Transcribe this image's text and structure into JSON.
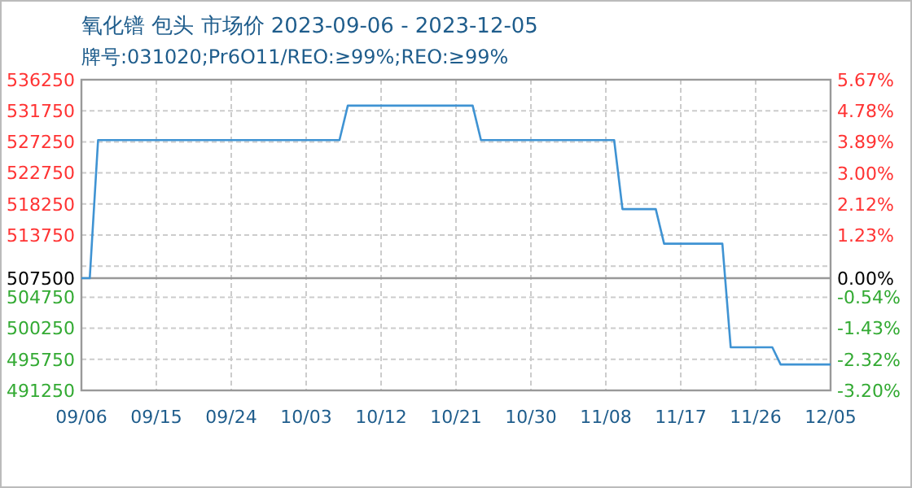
{
  "chart_data": {
    "type": "line",
    "title": "氧化镨 包头 市场价 2023-09-06 - 2023-12-05",
    "subtitle": "牌号:031020;Pr6O11/REO:≥99%;REO:≥99%",
    "x": [
      "2023-09-06",
      "2023-09-07",
      "2023-09-08",
      "2023-10-07",
      "2023-10-08",
      "2023-10-23",
      "2023-10-24",
      "2023-11-09",
      "2023-11-10",
      "2023-11-14",
      "2023-11-15",
      "2023-11-22",
      "2023-11-23",
      "2023-11-28",
      "2023-11-29",
      "2023-12-05"
    ],
    "series": [
      {
        "color": "#3f93d3",
        "values": [
          507500,
          507500,
          527500,
          527500,
          532500,
          532500,
          527500,
          527500,
          517500,
          517500,
          512500,
          512500,
          497500,
          497500,
          495000,
          495000
        ]
      }
    ],
    "xlim": [
      "2023-09-06",
      "2023-12-05"
    ],
    "xticks": [
      {
        "value": "2023-09-06",
        "label": "09/06"
      },
      {
        "value": "2023-09-15",
        "label": "09/15"
      },
      {
        "value": "2023-09-24",
        "label": "09/24"
      },
      {
        "value": "2023-10-03",
        "label": "10/03"
      },
      {
        "value": "2023-10-12",
        "label": "10/12"
      },
      {
        "value": "2023-10-21",
        "label": "10/21"
      },
      {
        "value": "2023-10-30",
        "label": "10/30"
      },
      {
        "value": "2023-11-08",
        "label": "11/08"
      },
      {
        "value": "2023-11-17",
        "label": "11/17"
      },
      {
        "value": "2023-11-26",
        "label": "11/26"
      },
      {
        "value": "2023-12-05",
        "label": "12/05"
      }
    ],
    "ylim": [
      491250,
      536250
    ],
    "yticks": [
      491250,
      495750,
      500250,
      504750,
      507500,
      {
        "value": 509250,
        "label": null
      },
      513750,
      518250,
      522750,
      527250,
      531750,
      536250
    ],
    "y2lim": [
      -3.2,
      5.67
    ],
    "y2ticks": [
      {
        "value": -3.2,
        "label": "-3.20%"
      },
      {
        "value": -2.32,
        "label": "-2.32%"
      },
      {
        "value": -1.43,
        "label": "-1.43%"
      },
      {
        "value": -0.54,
        "label": "-0.54%"
      },
      {
        "value": 0,
        "label": "0.00%"
      },
      {
        "value": 1.23,
        "label": "1.23%"
      },
      {
        "value": 2.12,
        "label": "2.12%"
      },
      {
        "value": 3.0,
        "label": "3.00%"
      },
      {
        "value": 3.89,
        "label": "3.89%"
      },
      {
        "value": 4.78,
        "label": "4.78%"
      },
      {
        "value": 5.67,
        "label": "5.67%"
      }
    ],
    "ref_lines": [
      {
        "axis": "y",
        "value": 507500,
        "color": "#999999"
      }
    ],
    "grid": true
  }
}
